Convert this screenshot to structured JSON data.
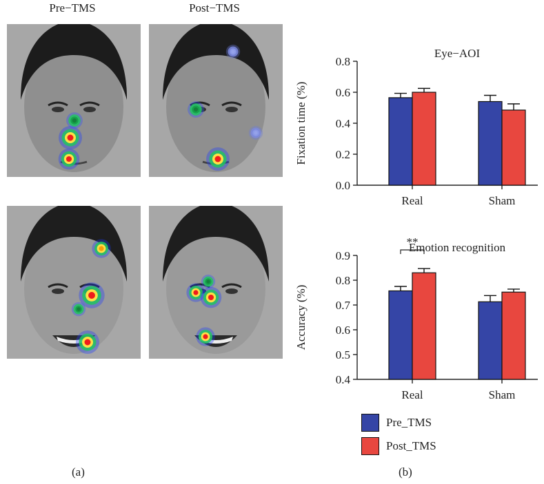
{
  "panel_a": {
    "column_titles": [
      "Pre−TMS",
      "Post−TMS"
    ],
    "label": "(a)",
    "faces": [
      {
        "name": "face-neutral-pre",
        "hair": "#1c1c1c",
        "skin": "#8f8f8f",
        "mouth": "neutral"
      },
      {
        "name": "face-neutral-post",
        "hair": "#1c1c1c",
        "skin": "#8f8f8f",
        "mouth": "neutral"
      },
      {
        "name": "face-happy-pre",
        "hair": "#1e1e1e",
        "skin": "#9a9a9a",
        "mouth": "smile"
      },
      {
        "name": "face-happy-post",
        "hair": "#1e1e1e",
        "skin": "#9a9a9a",
        "mouth": "smile"
      }
    ]
  },
  "panel_b": {
    "label": "(b)",
    "legend": [
      {
        "label": "Pre_TMS",
        "color": "#3545a6"
      },
      {
        "label": "Post_TMS",
        "color": "#e8473f"
      }
    ]
  },
  "chart_data": [
    {
      "type": "bar",
      "title": "Eye−AOI",
      "ylabel": "Fixation time (%)",
      "xlabel": "",
      "categories": [
        "Real",
        "Sham"
      ],
      "ylim": [
        0.0,
        0.8
      ],
      "yticks": [
        "0.0",
        "0.2",
        "0.4",
        "0.6",
        "0.8"
      ],
      "series": [
        {
          "name": "Pre_TMS",
          "color": "#3545a6",
          "values": [
            0.565,
            0.54
          ],
          "errors": [
            0.028,
            0.04
          ]
        },
        {
          "name": "Post_TMS",
          "color": "#e8473f",
          "values": [
            0.6,
            0.485
          ],
          "errors": [
            0.025,
            0.04
          ]
        }
      ]
    },
    {
      "type": "bar",
      "title": "Emotion recognition",
      "ylabel": "Accuracy (%)",
      "xlabel": "",
      "categories": [
        "Real",
        "Sham"
      ],
      "ylim": [
        0.4,
        0.9
      ],
      "yticks": [
        "0.4",
        "0.5",
        "0.6",
        "0.7",
        "0.8",
        "0.9"
      ],
      "series": [
        {
          "name": "Pre_TMS",
          "color": "#3545a6",
          "values": [
            0.757,
            0.713
          ],
          "errors": [
            0.018,
            0.025
          ]
        },
        {
          "name": "Post_TMS",
          "color": "#e8473f",
          "values": [
            0.83,
            0.752
          ],
          "errors": [
            0.017,
            0.012
          ]
        }
      ],
      "annotation": {
        "text": "**",
        "category": "Real"
      }
    }
  ]
}
